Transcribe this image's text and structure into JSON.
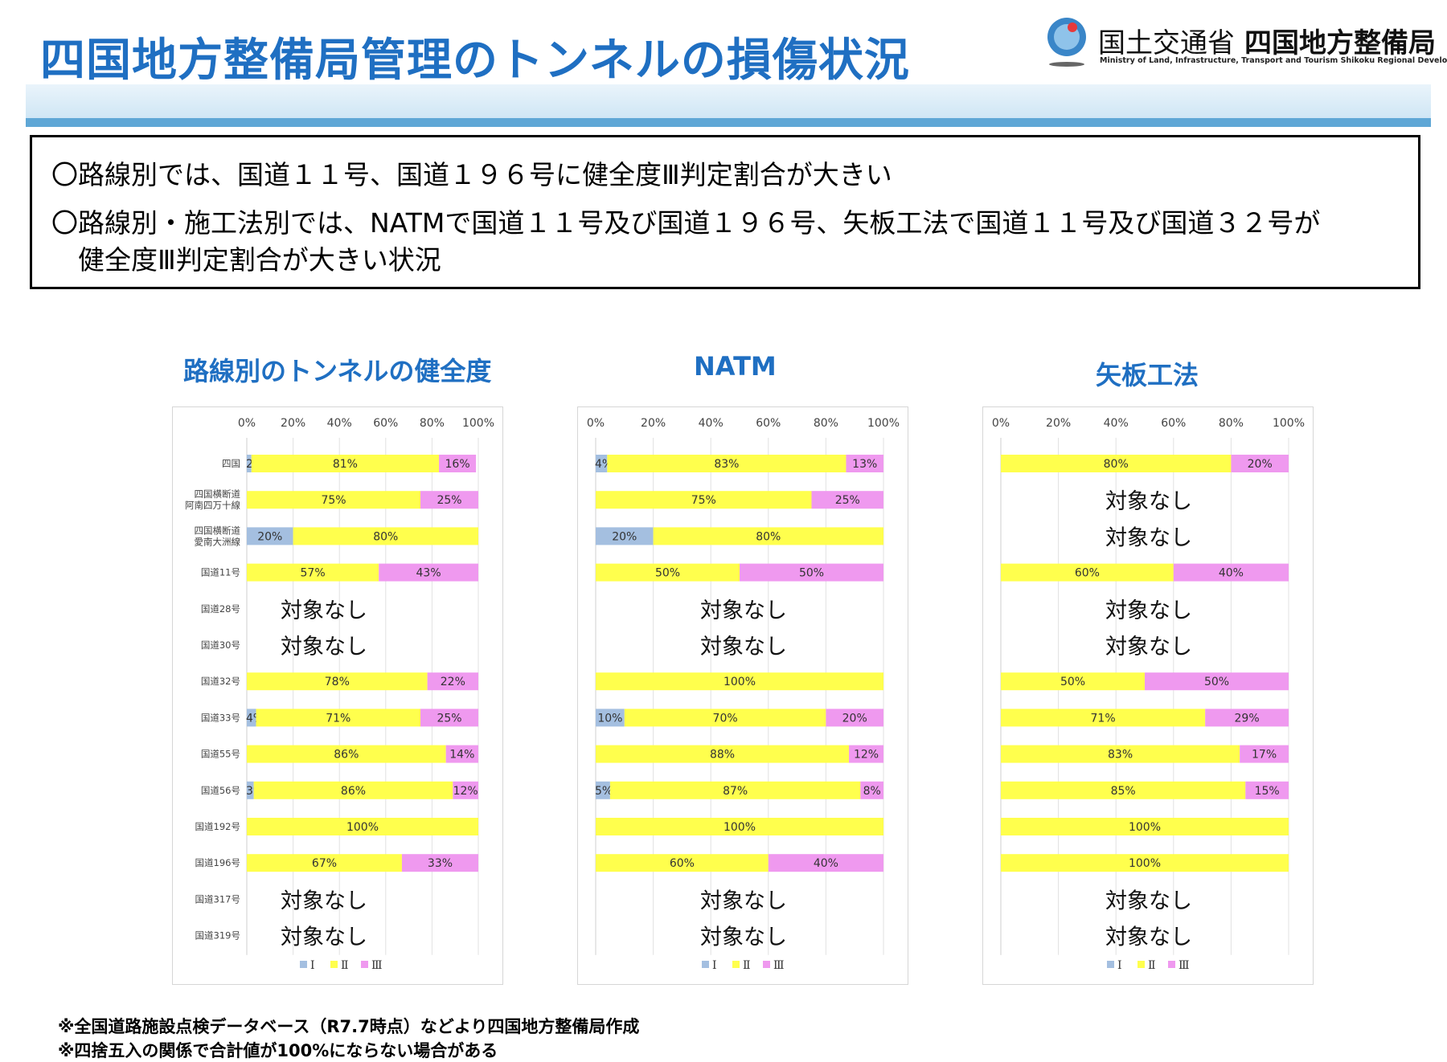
{
  "header": {
    "title": "四国地方整備局管理のトンネルの損傷状況",
    "ministry": "国土交通省",
    "bureau": "四国地方整備局",
    "bureau_en": "Ministry of Land, Infrastructure, Transport and Tourism Shikoku Regional Development Bureau"
  },
  "summary": {
    "line1": "〇路線別では、国道１１号、国道１９６号に健全度Ⅲ判定割合が大きい",
    "line2": "〇路線別・施工法別では、NATMで国道１１号及び国道１９６号、矢板工法で国道１１号及び国道３２号が",
    "line3": "健全度Ⅲ判定割合が大きい状況"
  },
  "colors": {
    "I": "#a4bfe0",
    "II": "#ffff4d",
    "III": "#ef99ef",
    "title": "#1f6fc2",
    "band": "#5fa7d6"
  },
  "none_label": "対象なし",
  "chart_data": [
    {
      "type": "bar",
      "orientation": "horizontal",
      "stacked": true,
      "title": "路線別のトンネルの健全度",
      "xlim": [
        0,
        100
      ],
      "x_ticks": [
        "0%",
        "20%",
        "40%",
        "60%",
        "80%",
        "100%"
      ],
      "categories": [
        "四国",
        "四国横断道 阿南四万十線",
        "四国横断道 愛南大洲線",
        "国道11号",
        "国道28号",
        "国道30号",
        "国道32号",
        "国道33号",
        "国道55号",
        "国道56号",
        "国道192号",
        "国道196号",
        "国道317号",
        "国道319号"
      ],
      "series": [
        {
          "name": "Ⅰ",
          "values": [
            2,
            0,
            20,
            0,
            null,
            null,
            0,
            4,
            0,
            3,
            0,
            0,
            null,
            null
          ],
          "labels": [
            "2%",
            "",
            "20%",
            "",
            "",
            "",
            "",
            "4%",
            "",
            "3%",
            "",
            "",
            "",
            ""
          ]
        },
        {
          "name": "Ⅱ",
          "values": [
            81,
            75,
            80,
            57,
            null,
            null,
            78,
            71,
            86,
            86,
            100,
            67,
            null,
            null
          ],
          "labels": [
            "81%",
            "75%",
            "80%",
            "57%",
            "",
            "",
            "78%",
            "71%",
            "86%",
            "86%",
            "100%",
            "67%",
            "",
            ""
          ]
        },
        {
          "name": "Ⅲ",
          "values": [
            16,
            25,
            0,
            43,
            null,
            null,
            22,
            25,
            14,
            12,
            0,
            33,
            null,
            null
          ],
          "labels": [
            "16%",
            "25%",
            "",
            "43%",
            "",
            "",
            "22%",
            "25%",
            "14%",
            "12%",
            "",
            "33%",
            "",
            ""
          ]
        }
      ],
      "legend": [
        "Ⅰ",
        "Ⅱ",
        "Ⅲ"
      ],
      "legend_position": "bottom",
      "none_rows": [
        4,
        5,
        12,
        13
      ]
    },
    {
      "type": "bar",
      "orientation": "horizontal",
      "stacked": true,
      "title": "NATM",
      "xlim": [
        0,
        100
      ],
      "x_ticks": [
        "0%",
        "20%",
        "40%",
        "60%",
        "80%",
        "100%"
      ],
      "categories": [
        "四国",
        "四国横断道 阿南四万十線",
        "四国横断道 愛南大洲線",
        "国道11号",
        "国道28号",
        "国道30号",
        "国道32号",
        "国道33号",
        "国道55号",
        "国道56号",
        "国道192号",
        "国道196号",
        "国道317号",
        "国道319号"
      ],
      "series": [
        {
          "name": "Ⅰ",
          "values": [
            4,
            0,
            20,
            0,
            null,
            null,
            0,
            10,
            0,
            5,
            0,
            0,
            null,
            null
          ],
          "labels": [
            "4%",
            "",
            "20%",
            "",
            "",
            "",
            "",
            "10%",
            "",
            "5%",
            "",
            "",
            "",
            ""
          ]
        },
        {
          "name": "Ⅱ",
          "values": [
            83,
            75,
            80,
            50,
            null,
            null,
            100,
            70,
            88,
            87,
            100,
            60,
            null,
            null
          ],
          "labels": [
            "83%",
            "75%",
            "80%",
            "50%",
            "",
            "",
            "100%",
            "70%",
            "88%",
            "87%",
            "100%",
            "60%",
            "",
            ""
          ]
        },
        {
          "name": "Ⅲ",
          "values": [
            13,
            25,
            0,
            50,
            null,
            null,
            0,
            20,
            12,
            8,
            0,
            40,
            null,
            null
          ],
          "labels": [
            "13%",
            "25%",
            "",
            "50%",
            "",
            "",
            "",
            "20%",
            "12%",
            "8%",
            "",
            "40%",
            "",
            ""
          ]
        }
      ],
      "legend": [
        "Ⅰ",
        "Ⅱ",
        "Ⅲ"
      ],
      "legend_position": "bottom",
      "none_rows": [
        4,
        5,
        12,
        13
      ]
    },
    {
      "type": "bar",
      "orientation": "horizontal",
      "stacked": true,
      "title": "矢板工法",
      "xlim": [
        0,
        100
      ],
      "x_ticks": [
        "0%",
        "20%",
        "40%",
        "60%",
        "80%",
        "100%"
      ],
      "categories": [
        "四国",
        "四国横断道 阿南四万十線",
        "四国横断道 愛南大洲線",
        "国道11号",
        "国道28号",
        "国道30号",
        "国道32号",
        "国道33号",
        "国道55号",
        "国道56号",
        "国道192号",
        "国道196号",
        "国道317号",
        "国道319号"
      ],
      "series": [
        {
          "name": "Ⅰ",
          "values": [
            0,
            null,
            null,
            0,
            null,
            null,
            0,
            0,
            0,
            0,
            0,
            0,
            null,
            null
          ],
          "labels": [
            "",
            "",
            "",
            "",
            "",
            "",
            "",
            "",
            "",
            "",
            "",
            "",
            "",
            ""
          ]
        },
        {
          "name": "Ⅱ",
          "values": [
            80,
            null,
            null,
            60,
            null,
            null,
            50,
            71,
            83,
            85,
            100,
            100,
            null,
            null
          ],
          "labels": [
            "80%",
            "",
            "",
            "60%",
            "",
            "",
            "50%",
            "71%",
            "83%",
            "85%",
            "100%",
            "100%",
            "",
            ""
          ]
        },
        {
          "name": "Ⅲ",
          "values": [
            20,
            null,
            null,
            40,
            null,
            null,
            50,
            29,
            17,
            15,
            0,
            0,
            null,
            null
          ],
          "labels": [
            "20%",
            "",
            "",
            "40%",
            "",
            "",
            "50%",
            "29%",
            "17%",
            "15%",
            "",
            "",
            "",
            ""
          ]
        }
      ],
      "legend": [
        "Ⅰ",
        "Ⅱ",
        "Ⅲ"
      ],
      "legend_position": "bottom",
      "none_rows": [
        1,
        2,
        4,
        5,
        12,
        13
      ]
    }
  ],
  "footnotes": [
    "※全国道路施設点検データベース（R7.7時点）などより四国地方整備局作成",
    "※四捨五入の関係で合計値が100%にならない場合がある"
  ]
}
